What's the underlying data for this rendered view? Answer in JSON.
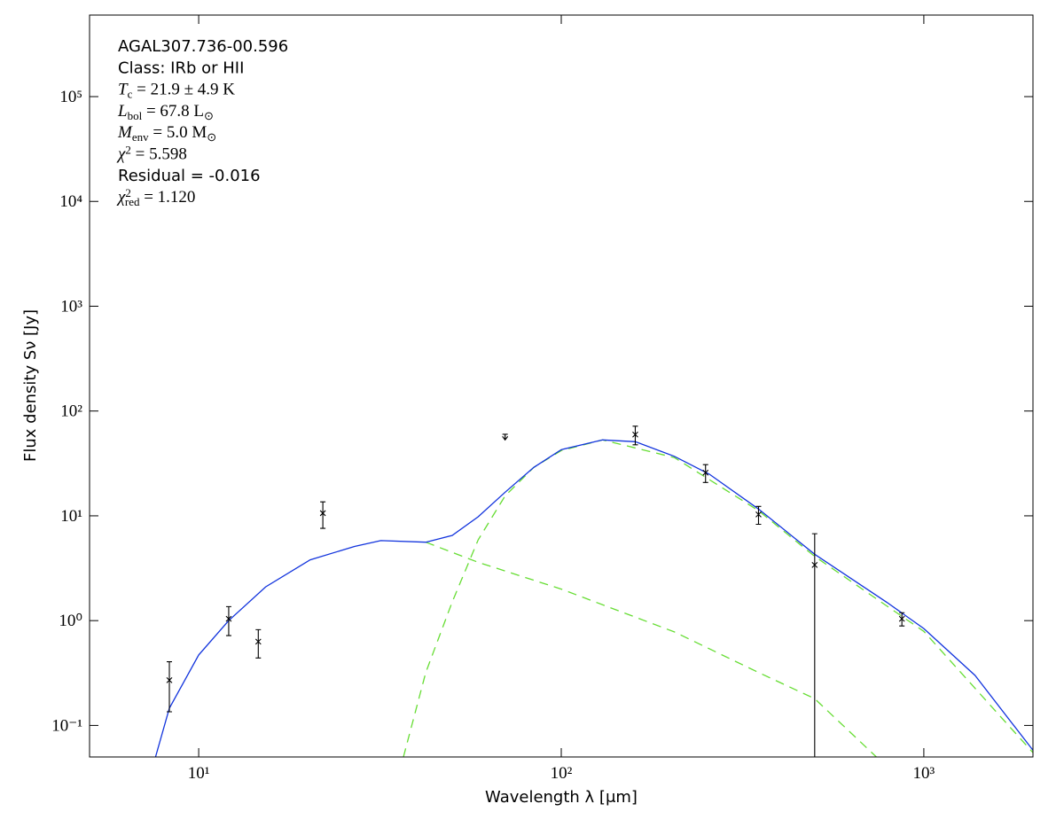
{
  "chart_data": {
    "type": "scatter",
    "xlabel": "Wavelength λ [μm]",
    "ylabel": "Flux density Sν [Jy]",
    "xscale": "log",
    "yscale": "log",
    "xlim": [
      5,
      2000
    ],
    "ylim": [
      0.05,
      600000
    ],
    "xticks": [
      {
        "value": 10,
        "label": "10¹"
      },
      {
        "value": 100,
        "label": "10²"
      },
      {
        "value": 1000,
        "label": "10³"
      }
    ],
    "yticks": [
      {
        "value": 0.1,
        "label": "10⁻¹"
      },
      {
        "value": 1,
        "label": "10⁰"
      },
      {
        "value": 10,
        "label": "10¹"
      },
      {
        "value": 100,
        "label": "10²"
      },
      {
        "value": 1000,
        "label": "10³"
      },
      {
        "value": 10000,
        "label": "10⁴"
      },
      {
        "value": 100000,
        "label": "10⁵"
      }
    ],
    "points": {
      "color": "#000000",
      "x": [
        8.3,
        12.1,
        14.6,
        22,
        70,
        160,
        250,
        350,
        500,
        870
      ],
      "values": [
        0.27,
        1.04,
        0.63,
        10.6,
        53,
        59.6,
        25.8,
        10.3,
        3.4,
        1.04
      ],
      "errors": [
        0.135,
        0.32,
        0.19,
        3,
        7,
        12,
        5,
        2,
        3.35,
        0.15
      ],
      "upper_limit": [
        false,
        false,
        false,
        false,
        true,
        false,
        false,
        false,
        false,
        false
      ]
    },
    "lines": [
      {
        "color": "#66dd33",
        "dashed": true,
        "x": [
          36.7,
          42.3,
          50,
          59,
          70,
          84,
          100,
          130,
          205,
          350,
          500,
          1000,
          2000
        ],
        "values": [
          0.05,
          0.32,
          1.5,
          5.9,
          15.5,
          29,
          42,
          53,
          36,
          11.2,
          4.1,
          0.79,
          0.055
        ]
      },
      {
        "color": "#66dd33",
        "dashed": true,
        "x": [
          42.3,
          59,
          100,
          205,
          350,
          500,
          740
        ],
        "values": [
          5.6,
          3.6,
          2.0,
          0.78,
          0.32,
          0.18,
          0.05
        ]
      },
      {
        "color": "#1133dd",
        "dashed": false,
        "x": [
          7.6,
          8.3,
          10,
          12.1,
          15.3,
          20.3,
          26.9,
          31.8,
          42.3,
          50,
          59,
          70,
          84,
          100,
          130,
          160,
          205,
          256,
          350,
          500,
          790,
          1000,
          1385,
          2000
        ],
        "values": [
          0.05,
          0.146,
          0.47,
          1.0,
          2.1,
          3.8,
          5.1,
          5.8,
          5.6,
          6.5,
          9.8,
          16.8,
          29,
          42.8,
          53,
          51,
          37,
          25,
          11.6,
          4.3,
          1.5,
          0.84,
          0.3,
          0.058
        ]
      }
    ],
    "annotations": [
      [
        {
          "text": "AGAL307.736-00.596",
          "font": "sans"
        }
      ],
      [
        {
          "text": "Class: IRb or HII",
          "font": "sans"
        }
      ],
      [
        {
          "text": "T",
          "italic": true
        },
        {
          "text": "c",
          "sub": true
        },
        {
          "text": " = 21.9 ± 4.9 K"
        }
      ],
      [
        {
          "text": "L",
          "italic": true
        },
        {
          "text": "bol",
          "sub": true
        },
        {
          "text": " = 67.8 L"
        },
        {
          "text": "⊙",
          "sub": true
        }
      ],
      [
        {
          "text": "M",
          "italic": true
        },
        {
          "text": "env",
          "sub": true
        },
        {
          "text": " = 5.0 M"
        },
        {
          "text": "⊙",
          "sub": true
        }
      ],
      [
        {
          "text": "χ",
          "italic": true
        },
        {
          "text": "2",
          "sup": true
        },
        {
          "text": " = 5.598"
        }
      ],
      [
        {
          "text": "Residual = -0.016",
          "font": "sans"
        }
      ],
      [
        {
          "text": "χ",
          "italic": true
        },
        {
          "text": "2",
          "sup": true
        },
        {
          "text": "red",
          "sub": true,
          "under_sup": true
        },
        {
          "text": " = 1.120"
        }
      ]
    ]
  }
}
